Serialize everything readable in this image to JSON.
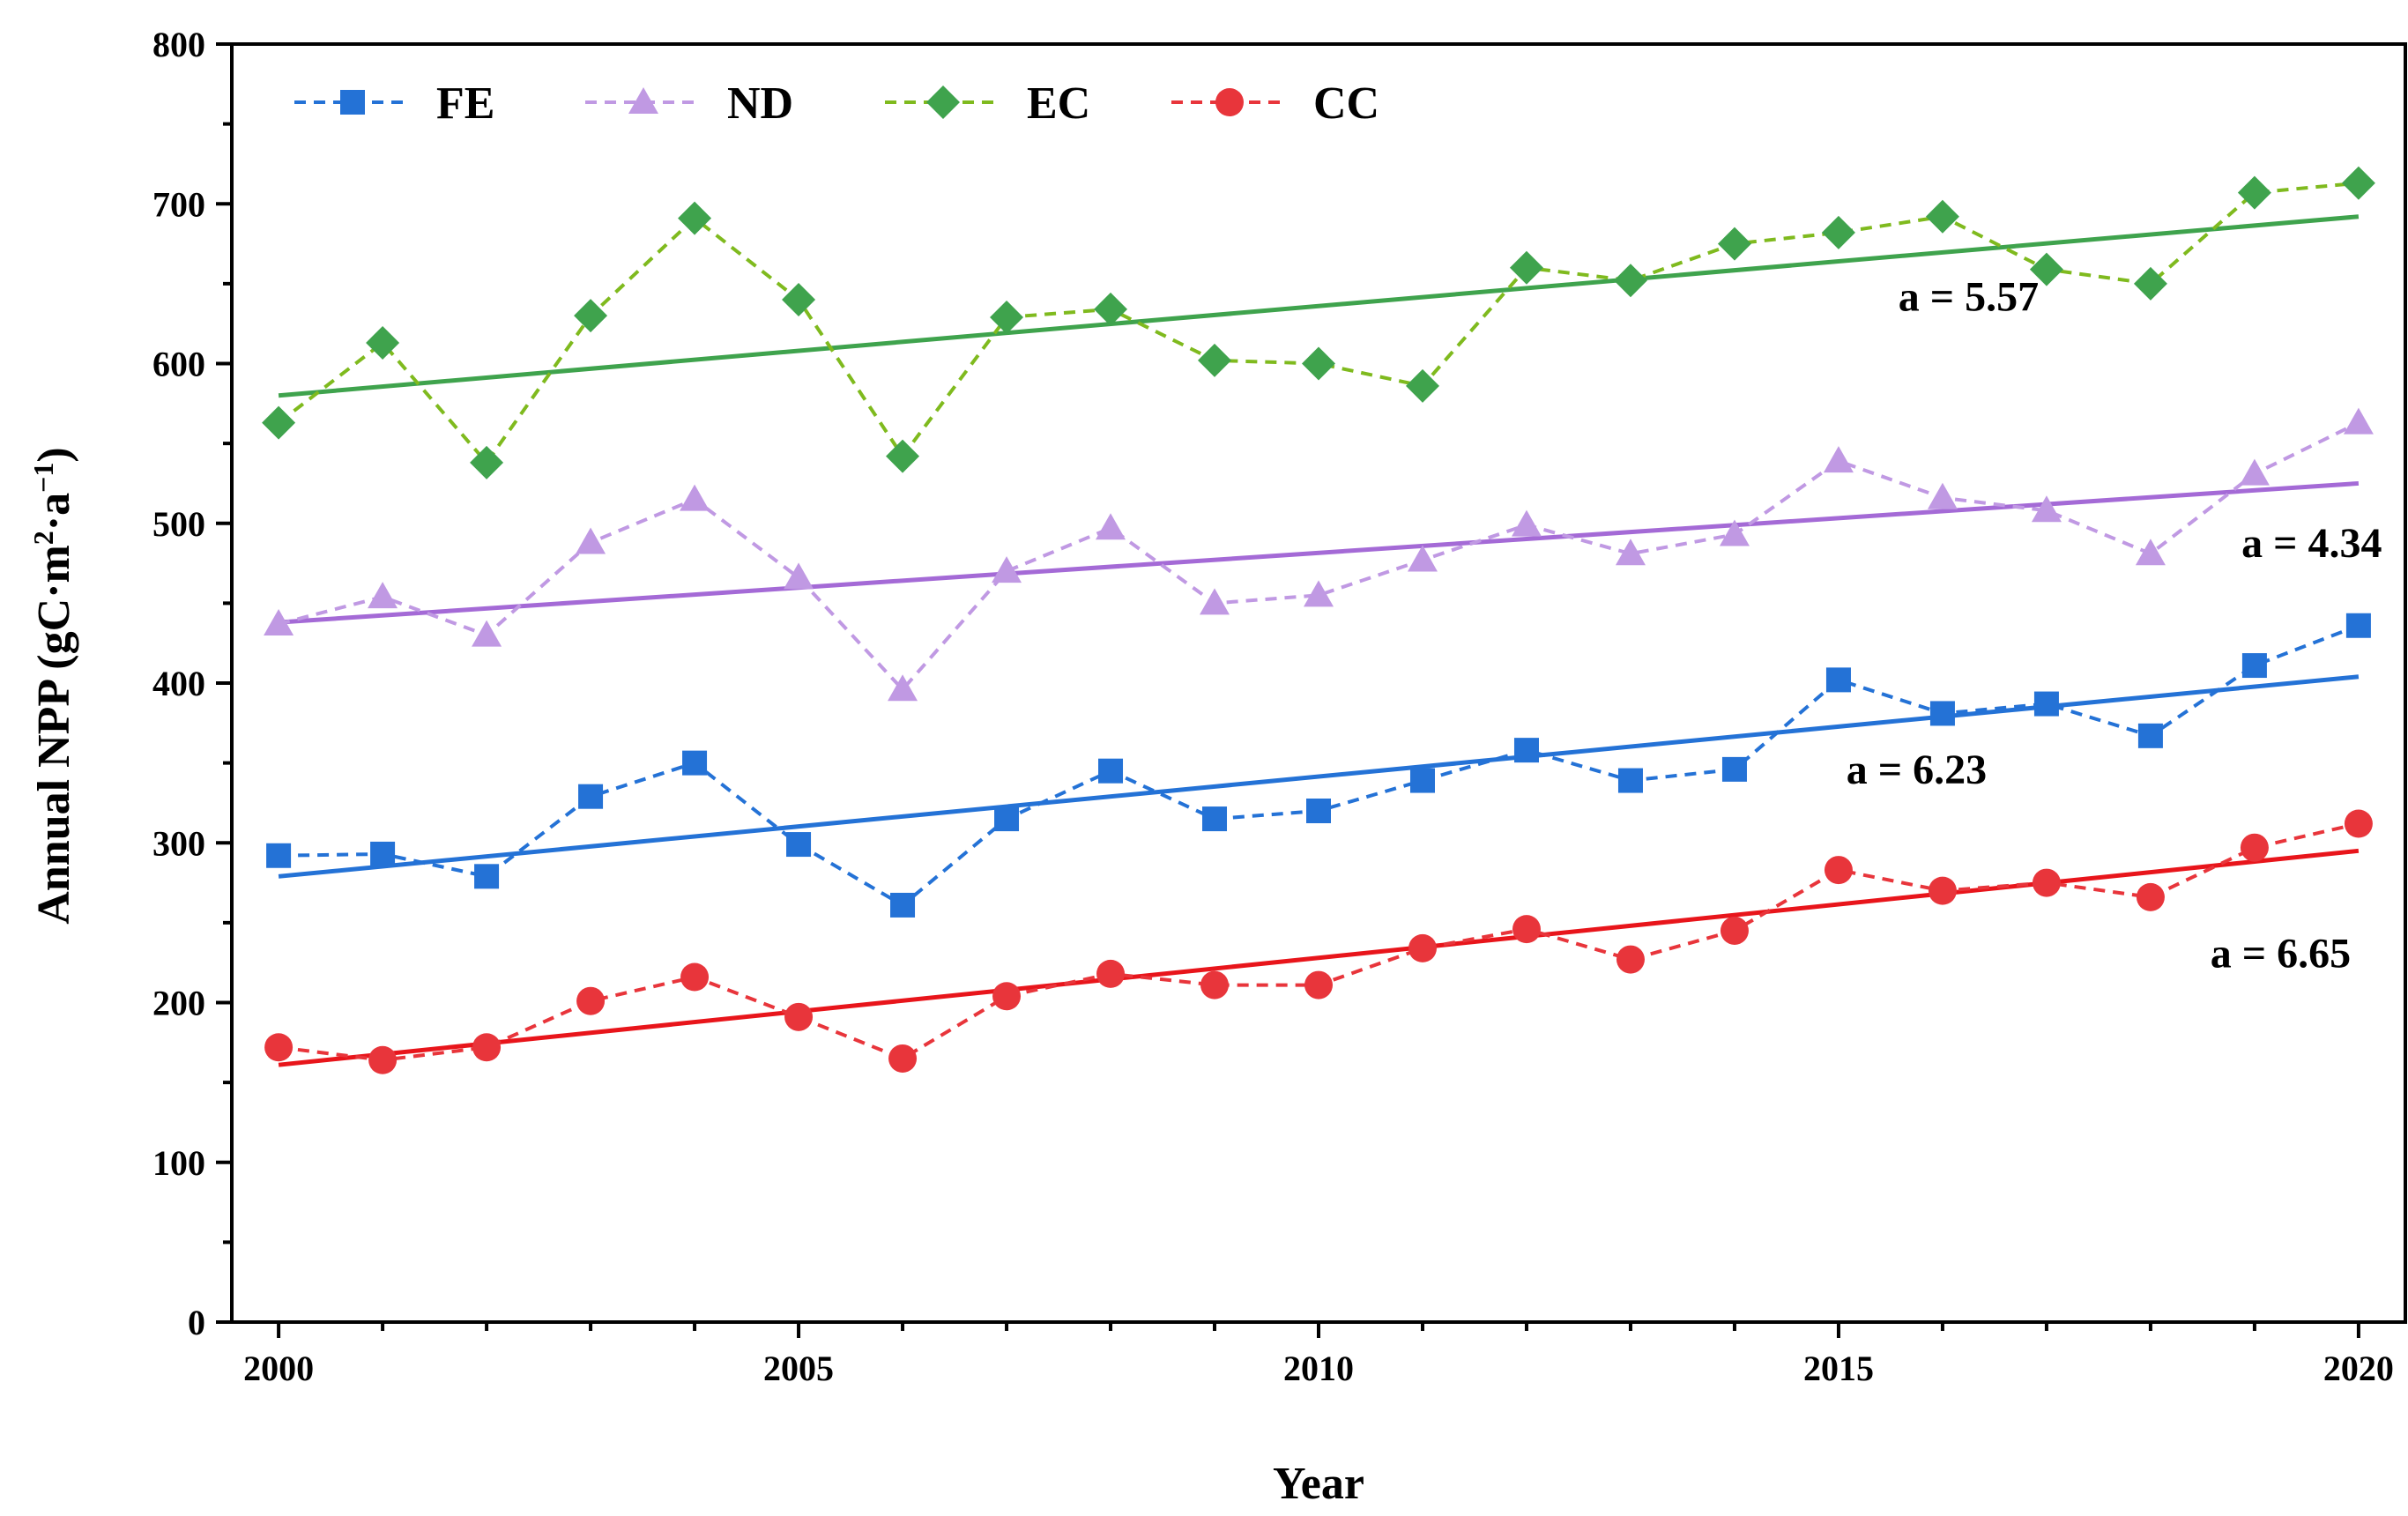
{
  "chart_data": {
    "type": "line",
    "title": "",
    "xlabel": "Year",
    "ylabel": "Annual NPP (gC·m²·a⁻¹)",
    "ylabel_parts": {
      "main": "Annual NPP (gC·m",
      "sup1": "2",
      "mid": "·a",
      "sup2": "−1",
      "end": ")"
    },
    "xlim": [
      1999.55,
      2020.45
    ],
    "ylim": [
      0,
      800
    ],
    "x_ticks": [
      2000,
      2005,
      2010,
      2015,
      2020
    ],
    "x_tick_labels": [
      "2000",
      "2005",
      "2010",
      "2015",
      "2020"
    ],
    "y_ticks": [
      0,
      100,
      200,
      300,
      400,
      500,
      600,
      700,
      800
    ],
    "y_tick_labels": [
      "0",
      "100",
      "200",
      "300",
      "400",
      "500",
      "600",
      "700",
      "800"
    ],
    "x": [
      2000,
      2001,
      2002,
      2003,
      2004,
      2005,
      2006,
      2007,
      2008,
      2009,
      2010,
      2011,
      2012,
      2013,
      2014,
      2015,
      2016,
      2017,
      2018,
      2019,
      2020
    ],
    "legend_position": "top-left",
    "series": [
      {
        "name": "FE",
        "marker": "square",
        "color": "#2472d6",
        "values": [
          292,
          293,
          279,
          329,
          350,
          299,
          261,
          315,
          345,
          315,
          320,
          339,
          358,
          339,
          346,
          402,
          381,
          387,
          367,
          411,
          436
        ],
        "trend": {
          "start": [
            2000,
            279
          ],
          "end": [
            2020,
            404
          ],
          "label": "a = 6.23"
        }
      },
      {
        "name": "ND",
        "marker": "triangle",
        "color": "#c099e3",
        "trend_color": "#a46ad6",
        "values": [
          437,
          454,
          430,
          488,
          515,
          466,
          396,
          470,
          497,
          450,
          455,
          477,
          499,
          481,
          493,
          539,
          516,
          508,
          481,
          531,
          563
        ],
        "trend": {
          "start": [
            2000,
            438
          ],
          "end": [
            2020,
            525
          ],
          "label": "a = 4.34"
        }
      },
      {
        "name": "EC",
        "marker": "diamond",
        "color": "#3fa34d",
        "line_color": "#7fba1e",
        "values": [
          563,
          613,
          538,
          630,
          691,
          640,
          542,
          629,
          634,
          602,
          600,
          586,
          660,
          652,
          675,
          682,
          692,
          659,
          650,
          707,
          713
        ],
        "trend": {
          "start": [
            2000,
            580
          ],
          "end": [
            2020,
            692
          ],
          "label": "a = 5.57"
        }
      },
      {
        "name": "CC",
        "marker": "circle",
        "color": "#e8353b",
        "trend_color": "#e8151b",
        "values": [
          172,
          164,
          172,
          201,
          216,
          191,
          165,
          204,
          218,
          211,
          211,
          234,
          246,
          227,
          245,
          283,
          270,
          275,
          266,
          297,
          312
        ],
        "trend": {
          "start": [
            2000,
            161
          ],
          "end": [
            2020,
            295
          ],
          "label": "a = 6.65"
        }
      }
    ],
    "annotations": [
      {
        "text": "a = 5.57",
        "x": 2016.25,
        "y": 633
      },
      {
        "text": "a = 4.34",
        "x": 2019.55,
        "y": 479
      },
      {
        "text": "a = 6.23",
        "x": 2015.75,
        "y": 337
      },
      {
        "text": "a = 6.65",
        "x": 2019.25,
        "y": 222
      }
    ]
  }
}
